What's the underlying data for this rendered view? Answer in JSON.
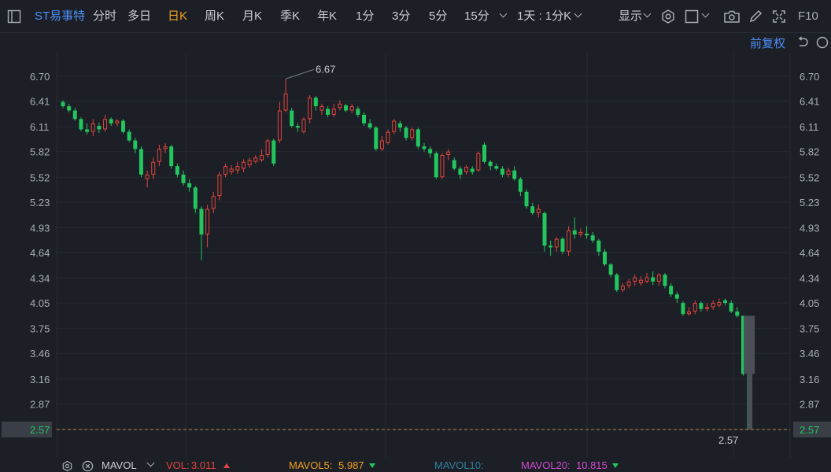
{
  "toolbar": {
    "stock_name": "ST易事特",
    "periods": [
      "分时",
      "多日",
      "日K",
      "周K",
      "月K",
      "季K",
      "年K",
      "1分",
      "3分",
      "5分",
      "15分"
    ],
    "active_period": "日K",
    "interval_label": "1天 : 1分K",
    "display_label": "显示",
    "f10_label": "F10"
  },
  "subbar": {
    "adjust_label": "前复权"
  },
  "chart_data": {
    "type": "candlestick",
    "yticks": [
      "6.70",
      "6.41",
      "6.11",
      "5.82",
      "5.52",
      "5.23",
      "4.93",
      "4.64",
      "4.34",
      "4.05",
      "3.75",
      "3.46",
      "3.16",
      "2.87",
      "2.57"
    ],
    "ylim": [
      2.57,
      6.7
    ],
    "max_label": "6.67",
    "min_label": "2.57",
    "current_price": "2.57",
    "up_color": "#e3453c",
    "down_color": "#22c55e",
    "candles": [
      [
        6.4,
        6.35,
        6.42,
        6.33
      ],
      [
        6.35,
        6.3,
        6.38,
        6.28
      ],
      [
        6.3,
        6.2,
        6.33,
        6.18
      ],
      [
        6.2,
        6.08,
        6.22,
        6.06
      ],
      [
        6.08,
        6.05,
        6.15,
        6.02
      ],
      [
        6.05,
        6.15,
        6.2,
        6.0
      ],
      [
        6.12,
        6.08,
        6.16,
        6.04
      ],
      [
        6.08,
        6.2,
        6.25,
        6.05
      ],
      [
        6.2,
        6.15,
        6.22,
        6.12
      ],
      [
        6.15,
        6.18,
        6.2,
        6.12
      ],
      [
        6.18,
        6.05,
        6.2,
        6.03
      ],
      [
        6.05,
        5.95,
        6.08,
        5.93
      ],
      [
        5.95,
        5.85,
        5.98,
        5.8
      ],
      [
        5.85,
        5.55,
        5.88,
        5.52
      ],
      [
        5.5,
        5.55,
        5.6,
        5.4
      ],
      [
        5.55,
        5.7,
        5.75,
        5.5
      ],
      [
        5.7,
        5.85,
        5.9,
        5.65
      ],
      [
        5.85,
        5.88,
        5.92,
        5.8
      ],
      [
        5.88,
        5.65,
        5.9,
        5.62
      ],
      [
        5.65,
        5.55,
        5.68,
        5.52
      ],
      [
        5.55,
        5.45,
        5.6,
        5.42
      ],
      [
        5.45,
        5.4,
        5.5,
        5.35
      ],
      [
        5.4,
        5.15,
        5.42,
        5.1
      ],
      [
        5.15,
        4.85,
        5.18,
        4.55
      ],
      [
        4.85,
        5.15,
        5.2,
        4.7
      ],
      [
        5.15,
        5.3,
        5.35,
        5.1
      ],
      [
        5.3,
        5.55,
        5.58,
        5.25
      ],
      [
        5.55,
        5.65,
        5.68,
        5.52
      ],
      [
        5.58,
        5.62,
        5.66,
        5.55
      ],
      [
        5.6,
        5.65,
        5.7,
        5.56
      ],
      [
        5.62,
        5.7,
        5.73,
        5.58
      ],
      [
        5.66,
        5.72,
        5.75,
        5.63
      ],
      [
        5.7,
        5.75,
        5.78,
        5.68
      ],
      [
        5.72,
        5.78,
        5.85,
        5.7
      ],
      [
        5.78,
        5.95,
        5.97,
        5.75
      ],
      [
        5.95,
        5.68,
        5.97,
        5.65
      ],
      [
        5.95,
        6.3,
        6.4,
        5.92
      ],
      [
        6.3,
        6.5,
        6.67,
        6.28
      ],
      [
        6.3,
        6.12,
        6.33,
        6.1
      ],
      [
        6.12,
        6.1,
        6.15,
        6.05
      ],
      [
        6.05,
        6.2,
        6.22,
        6.03
      ],
      [
        6.2,
        6.45,
        6.48,
        6.15
      ],
      [
        6.45,
        6.35,
        6.47,
        6.3
      ],
      [
        6.3,
        6.35,
        6.38,
        6.25
      ],
      [
        6.32,
        6.25,
        6.35,
        6.22
      ],
      [
        6.25,
        6.32,
        6.38,
        6.22
      ],
      [
        6.33,
        6.38,
        6.42,
        6.3
      ],
      [
        6.36,
        6.3,
        6.38,
        6.28
      ],
      [
        6.3,
        6.35,
        6.38,
        6.27
      ],
      [
        6.32,
        6.25,
        6.35,
        6.22
      ],
      [
        6.25,
        6.15,
        6.28,
        6.12
      ],
      [
        6.15,
        6.1,
        6.2,
        6.08
      ],
      [
        6.1,
        5.85,
        6.12,
        5.83
      ],
      [
        5.85,
        5.95,
        6.0,
        5.83
      ],
      [
        5.92,
        6.05,
        6.08,
        5.9
      ],
      [
        6.05,
        6.18,
        6.2,
        6.02
      ],
      [
        6.15,
        6.1,
        6.18,
        6.05
      ],
      [
        6.1,
        5.98,
        6.12,
        5.95
      ],
      [
        5.98,
        6.08,
        6.1,
        5.95
      ],
      [
        6.08,
        5.88,
        6.1,
        5.85
      ],
      [
        5.88,
        5.85,
        5.92,
        5.82
      ],
      [
        5.85,
        5.8,
        5.88,
        5.75
      ],
      [
        5.8,
        5.52,
        5.82,
        5.5
      ],
      [
        5.52,
        5.78,
        5.8,
        5.5
      ],
      [
        5.78,
        5.82,
        5.85,
        5.72
      ],
      [
        5.72,
        5.62,
        5.75,
        5.6
      ],
      [
        5.62,
        5.55,
        5.65,
        5.5
      ],
      [
        5.58,
        5.64,
        5.66,
        5.55
      ],
      [
        5.62,
        5.58,
        5.65,
        5.55
      ],
      [
        5.6,
        5.8,
        5.82,
        5.58
      ],
      [
        5.9,
        5.7,
        5.93,
        5.68
      ],
      [
        5.7,
        5.65,
        5.72,
        5.6
      ],
      [
        5.65,
        5.62,
        5.68,
        5.6
      ],
      [
        5.62,
        5.55,
        5.65,
        5.52
      ],
      [
        5.55,
        5.6,
        5.63,
        5.52
      ],
      [
        5.6,
        5.5,
        5.65,
        5.48
      ],
      [
        5.5,
        5.35,
        5.52,
        5.3
      ],
      [
        5.35,
        5.18,
        5.38,
        5.15
      ],
      [
        5.18,
        5.1,
        5.22,
        5.08
      ],
      [
        5.1,
        5.15,
        5.2,
        5.05
      ],
      [
        5.1,
        4.72,
        5.12,
        4.65
      ],
      [
        4.72,
        4.7,
        4.78,
        4.6
      ],
      [
        4.7,
        4.8,
        4.82,
        4.65
      ],
      [
        4.8,
        4.65,
        4.82,
        4.62
      ],
      [
        4.65,
        4.9,
        4.95,
        4.6
      ],
      [
        4.9,
        4.85,
        5.05,
        4.8
      ],
      [
        4.85,
        4.88,
        4.92,
        4.82
      ],
      [
        4.86,
        4.84,
        4.95,
        4.8
      ],
      [
        4.84,
        4.78,
        4.88,
        4.75
      ],
      [
        4.78,
        4.65,
        4.8,
        4.6
      ],
      [
        4.65,
        4.5,
        4.68,
        4.48
      ],
      [
        4.5,
        4.38,
        4.52,
        4.35
      ],
      [
        4.38,
        4.2,
        4.4,
        4.18
      ],
      [
        4.2,
        4.25,
        4.28,
        4.18
      ],
      [
        4.25,
        4.3,
        4.33,
        4.22
      ],
      [
        4.3,
        4.35,
        4.38,
        4.25
      ],
      [
        4.28,
        4.32,
        4.36,
        4.25
      ],
      [
        4.3,
        4.35,
        4.4,
        4.28
      ],
      [
        4.35,
        4.3,
        4.42,
        4.26
      ],
      [
        4.3,
        4.38,
        4.4,
        4.25
      ],
      [
        4.38,
        4.25,
        4.4,
        4.22
      ],
      [
        4.25,
        4.15,
        4.28,
        4.12
      ],
      [
        4.15,
        4.1,
        4.18,
        4.05
      ],
      [
        4.05,
        3.92,
        4.07,
        3.9
      ],
      [
        3.92,
        3.95,
        4.0,
        3.9
      ],
      [
        3.95,
        4.05,
        4.08,
        3.92
      ],
      [
        4.05,
        3.98,
        4.07,
        3.95
      ],
      [
        3.98,
        4.0,
        4.05,
        3.95
      ],
      [
        4.0,
        4.05,
        4.08,
        3.97
      ],
      [
        4.02,
        4.06,
        4.1,
        4.0
      ],
      [
        4.08,
        4.05,
        4.1,
        4.02
      ],
      [
        4.05,
        3.95,
        4.08,
        3.93
      ],
      [
        3.95,
        3.9,
        4.0,
        3.88
      ],
      [
        3.9,
        3.22,
        3.9,
        3.2
      ],
      [
        3.22,
        2.57,
        3.22,
        2.57
      ]
    ]
  },
  "volume_bar": {
    "indicator_name": "MAVOL",
    "vol_label": "VOL:",
    "vol_value": "3.011",
    "mavol5_label": "MAVOL5:",
    "mavol5_value": "5.987",
    "mavol10_label": "MAVOL10:",
    "mavol20_label": "MAVOL20:",
    "mavol20_value": "10.815"
  }
}
